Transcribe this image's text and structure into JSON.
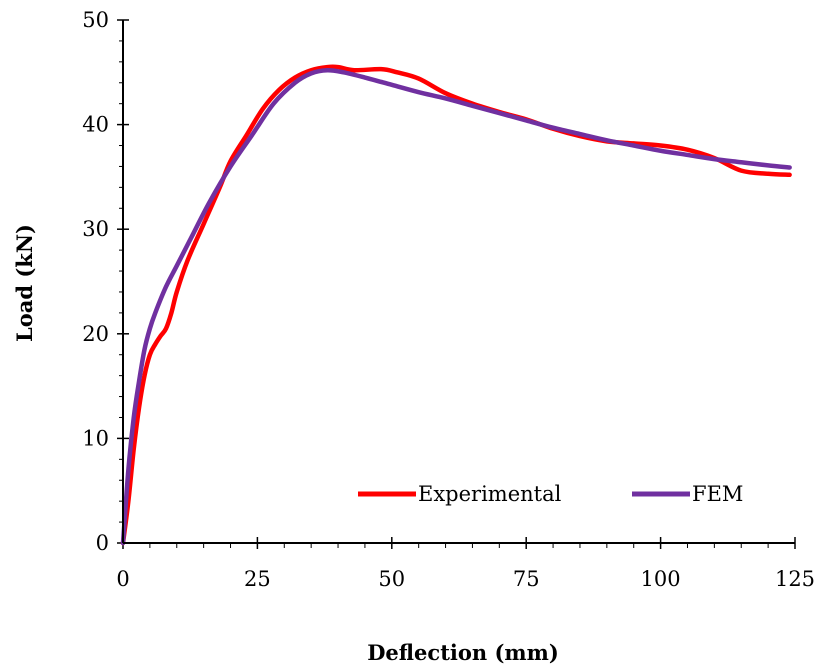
{
  "chart_data": {
    "type": "line",
    "title": "",
    "xlabel": "Deflection (mm)",
    "ylabel": "Load (kN)",
    "xlim": [
      0,
      125
    ],
    "ylim": [
      0,
      50
    ],
    "x_ticks": [
      0,
      25,
      50,
      75,
      100,
      125
    ],
    "y_ticks": [
      0,
      10,
      20,
      30,
      40,
      50
    ],
    "grid": false,
    "legend_position": "bottom-right",
    "series": [
      {
        "name": "Experimental",
        "color": "#ff0000",
        "points": [
          [
            0,
            0
          ],
          [
            1,
            4
          ],
          [
            2,
            9
          ],
          [
            3,
            13
          ],
          [
            4,
            16
          ],
          [
            5,
            18
          ],
          [
            6,
            19
          ],
          [
            7,
            19.8
          ],
          [
            8,
            20.5
          ],
          [
            9,
            22
          ],
          [
            10,
            24
          ],
          [
            12,
            27
          ],
          [
            15,
            30.5
          ],
          [
            18,
            34
          ],
          [
            20,
            36.5
          ],
          [
            23,
            39
          ],
          [
            26,
            41.5
          ],
          [
            29,
            43.3
          ],
          [
            32,
            44.5
          ],
          [
            35,
            45.2
          ],
          [
            38,
            45.5
          ],
          [
            40,
            45.5
          ],
          [
            43,
            45.2
          ],
          [
            48,
            45.3
          ],
          [
            51,
            45
          ],
          [
            55,
            44.4
          ],
          [
            60,
            43
          ],
          [
            65,
            42
          ],
          [
            70,
            41.2
          ],
          [
            75,
            40.5
          ],
          [
            80,
            39.6
          ],
          [
            85,
            38.9
          ],
          [
            90,
            38.4
          ],
          [
            95,
            38.2
          ],
          [
            100,
            38
          ],
          [
            105,
            37.6
          ],
          [
            110,
            36.8
          ],
          [
            115,
            35.6
          ],
          [
            120,
            35.3
          ],
          [
            124,
            35.2
          ]
        ]
      },
      {
        "name": "FEM",
        "color": "#7030a0",
        "points": [
          [
            0,
            0
          ],
          [
            1,
            7
          ],
          [
            2,
            12
          ],
          [
            3,
            15.5
          ],
          [
            4,
            18.5
          ],
          [
            5,
            20.5
          ],
          [
            6,
            22
          ],
          [
            8,
            24.5
          ],
          [
            10,
            26.5
          ],
          [
            13,
            29.5
          ],
          [
            16,
            32.5
          ],
          [
            20,
            36
          ],
          [
            24,
            39
          ],
          [
            28,
            42
          ],
          [
            32,
            44
          ],
          [
            35,
            44.9
          ],
          [
            38,
            45.2
          ],
          [
            41,
            45
          ],
          [
            45,
            44.5
          ],
          [
            50,
            43.8
          ],
          [
            55,
            43.1
          ],
          [
            60,
            42.5
          ],
          [
            65,
            41.8
          ],
          [
            70,
            41.1
          ],
          [
            75,
            40.4
          ],
          [
            80,
            39.7
          ],
          [
            85,
            39.1
          ],
          [
            90,
            38.5
          ],
          [
            95,
            38
          ],
          [
            100,
            37.5
          ],
          [
            105,
            37.1
          ],
          [
            110,
            36.7
          ],
          [
            115,
            36.4
          ],
          [
            120,
            36.1
          ],
          [
            124,
            35.9
          ]
        ]
      }
    ]
  }
}
